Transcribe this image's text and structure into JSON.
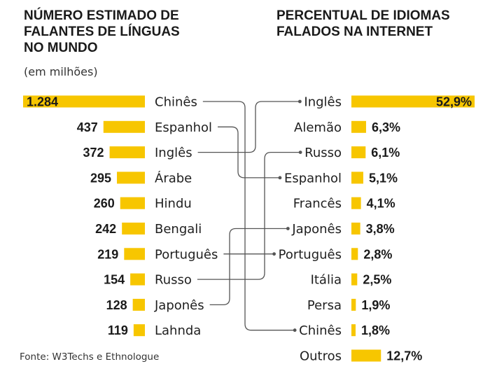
{
  "chart_data": [
    {
      "type": "bar",
      "title": "NÚMERO ESTIMADO DE FALANTES DE LÍNGUAS NO MUNDO",
      "title_lines": [
        "NÚMERO ESTIMADO DE",
        "FALANTES DE LÍNGUAS",
        "NO MUNDO"
      ],
      "subtitle": "(em milhões)",
      "categories": [
        "Chinês",
        "Espanhol",
        "Inglês",
        "Árabe",
        "Hindu",
        "Bengali",
        "Português",
        "Russo",
        "Japonês",
        "Lahnda"
      ],
      "values": [
        1284,
        437,
        372,
        295,
        260,
        242,
        219,
        154,
        128,
        119
      ],
      "value_labels": [
        "1.284",
        "437",
        "372",
        "295",
        "260",
        "242",
        "219",
        "154",
        "128",
        "119"
      ],
      "orientation": "horizontal"
    },
    {
      "type": "bar",
      "title": "PERCENTUAL DE IDIOMAS FALADOS NA INTERNET",
      "title_lines": [
        "PERCENTUAL DE IDIOMAS",
        "FALADOS NA INTERNET"
      ],
      "categories": [
        "Inglês",
        "Alemão",
        "Russo",
        "Espanhol",
        "Francês",
        "Japonês",
        "Português",
        "Itália",
        "Persa",
        "Chinês",
        "Outros"
      ],
      "values": [
        52.9,
        6.3,
        6.1,
        5.1,
        4.1,
        3.8,
        2.8,
        2.5,
        1.9,
        1.8,
        12.7
      ],
      "value_labels": [
        "52,9%",
        "6,3%",
        "6,1%",
        "5,1%",
        "4,1%",
        "3,8%",
        "2,8%",
        "2,5%",
        "1,9%",
        "1,8%",
        "12,7%"
      ],
      "orientation": "horizontal"
    }
  ],
  "connections": [
    {
      "from": "Chinês",
      "to": "Chinês"
    },
    {
      "from": "Espanhol",
      "to": "Espanhol"
    },
    {
      "from": "Inglês",
      "to": "Inglês"
    },
    {
      "from": "Português",
      "to": "Português"
    },
    {
      "from": "Russo",
      "to": "Russo"
    },
    {
      "from": "Japonês",
      "to": "Japonês"
    }
  ],
  "source": "Fonte: W3Techs e Ethnologue",
  "colors": {
    "bar": "#F7C600",
    "line": "#555555",
    "text": "#1a1a1a"
  }
}
